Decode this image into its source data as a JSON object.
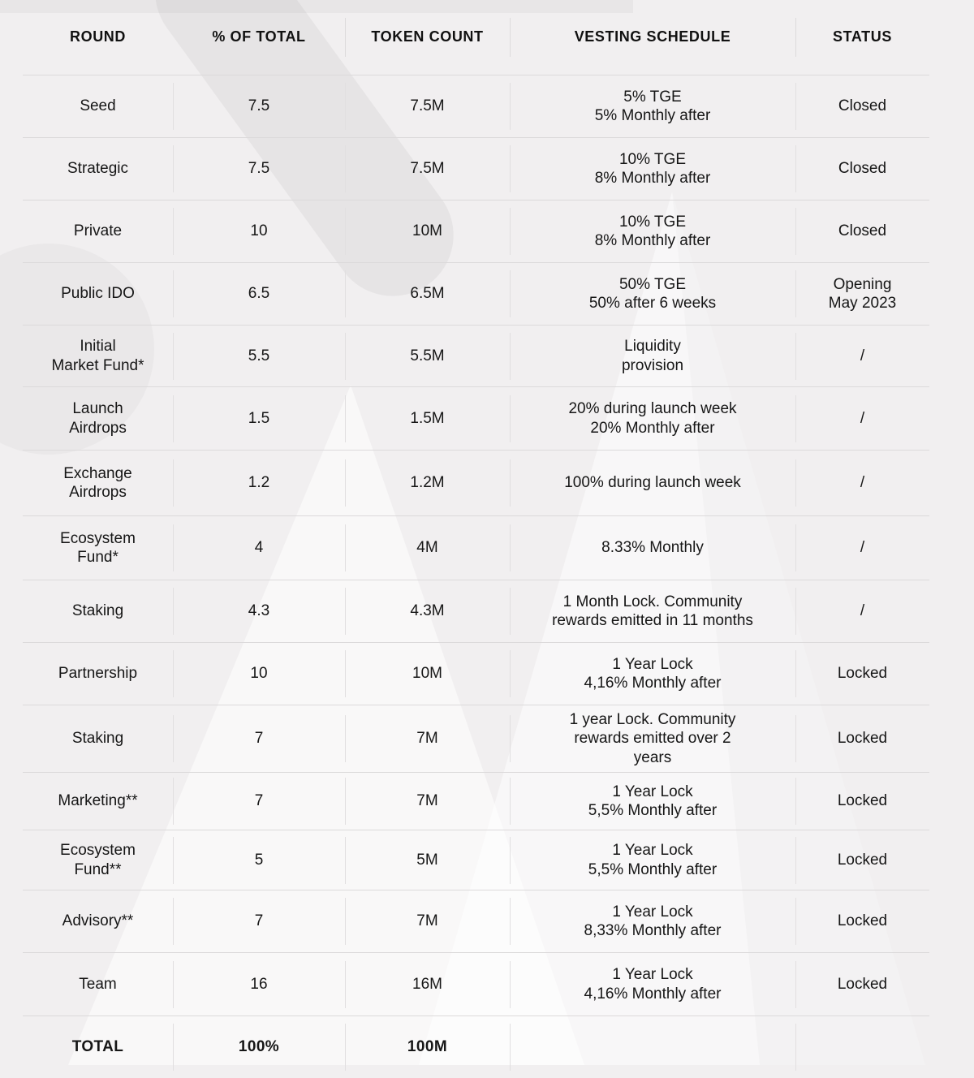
{
  "table": {
    "columns": [
      "ROUND",
      "% OF TOTAL",
      "TOKEN  COUNT",
      "VESTING SCHEDULE",
      "STATUS"
    ],
    "rows": [
      {
        "round": "Seed",
        "percent": "7.5",
        "tokens": "7.5M",
        "vesting": "5% TGE\n5% Monthly after",
        "status": "Closed"
      },
      {
        "round": "Strategic",
        "percent": "7.5",
        "tokens": "7.5M",
        "vesting": "10% TGE\n8% Monthly after",
        "status": "Closed"
      },
      {
        "round": "Private",
        "percent": "10",
        "tokens": "10M",
        "vesting": "10% TGE\n8% Monthly after",
        "status": "Closed"
      },
      {
        "round": "Public IDO",
        "percent": "6.5",
        "tokens": "6.5M",
        "vesting": "50% TGE\n50% after 6 weeks",
        "status": "Opening\nMay 2023"
      },
      {
        "round": "Initial\nMarket Fund*",
        "percent": "5.5",
        "tokens": "5.5M",
        "vesting": "Liquidity\nprovision",
        "status": "/"
      },
      {
        "round": "Launch\nAirdrops",
        "percent": "1.5",
        "tokens": "1.5M",
        "vesting": "20% during launch week\n20% Monthly after",
        "status": "/"
      },
      {
        "round": "Exchange\nAirdrops",
        "percent": "1.2",
        "tokens": "1.2M",
        "vesting": "100% during launch week",
        "status": "/"
      },
      {
        "round": "Ecosystem\nFund*",
        "percent": "4",
        "tokens": "4M",
        "vesting": "8.33% Monthly",
        "status": "/"
      },
      {
        "round": "Staking",
        "percent": "4.3",
        "tokens": "4.3M",
        "vesting": "1 Month Lock. Community\nrewards emitted in 11 months",
        "status": "/"
      },
      {
        "round": "Partnership",
        "percent": "10",
        "tokens": "10M",
        "vesting": "1 Year Lock\n4,16% Monthly after",
        "status": "Locked"
      },
      {
        "round": "Staking",
        "percent": "7",
        "tokens": "7M",
        "vesting": "1 year Lock. Community\nrewards emitted over 2\nyears",
        "status": "Locked"
      },
      {
        "round": "Marketing**",
        "percent": "7",
        "tokens": "7M",
        "vesting": "1 Year Lock\n5,5% Monthly after",
        "status": "Locked"
      },
      {
        "round": "Ecosystem\nFund**",
        "percent": "5",
        "tokens": "5M",
        "vesting": "1 Year Lock\n5,5% Monthly after",
        "status": "Locked"
      },
      {
        "round": "Advisory**",
        "percent": "7",
        "tokens": "7M",
        "vesting": "1 Year Lock\n8,33% Monthly after",
        "status": "Locked"
      },
      {
        "round": "Team",
        "percent": "16",
        "tokens": "16M",
        "vesting": "1 Year Lock\n4,16% Monthly after",
        "status": "Locked"
      }
    ],
    "total": {
      "round": "TOTAL",
      "percent": "100%",
      "tokens": "100M",
      "vesting": "",
      "status": ""
    }
  }
}
